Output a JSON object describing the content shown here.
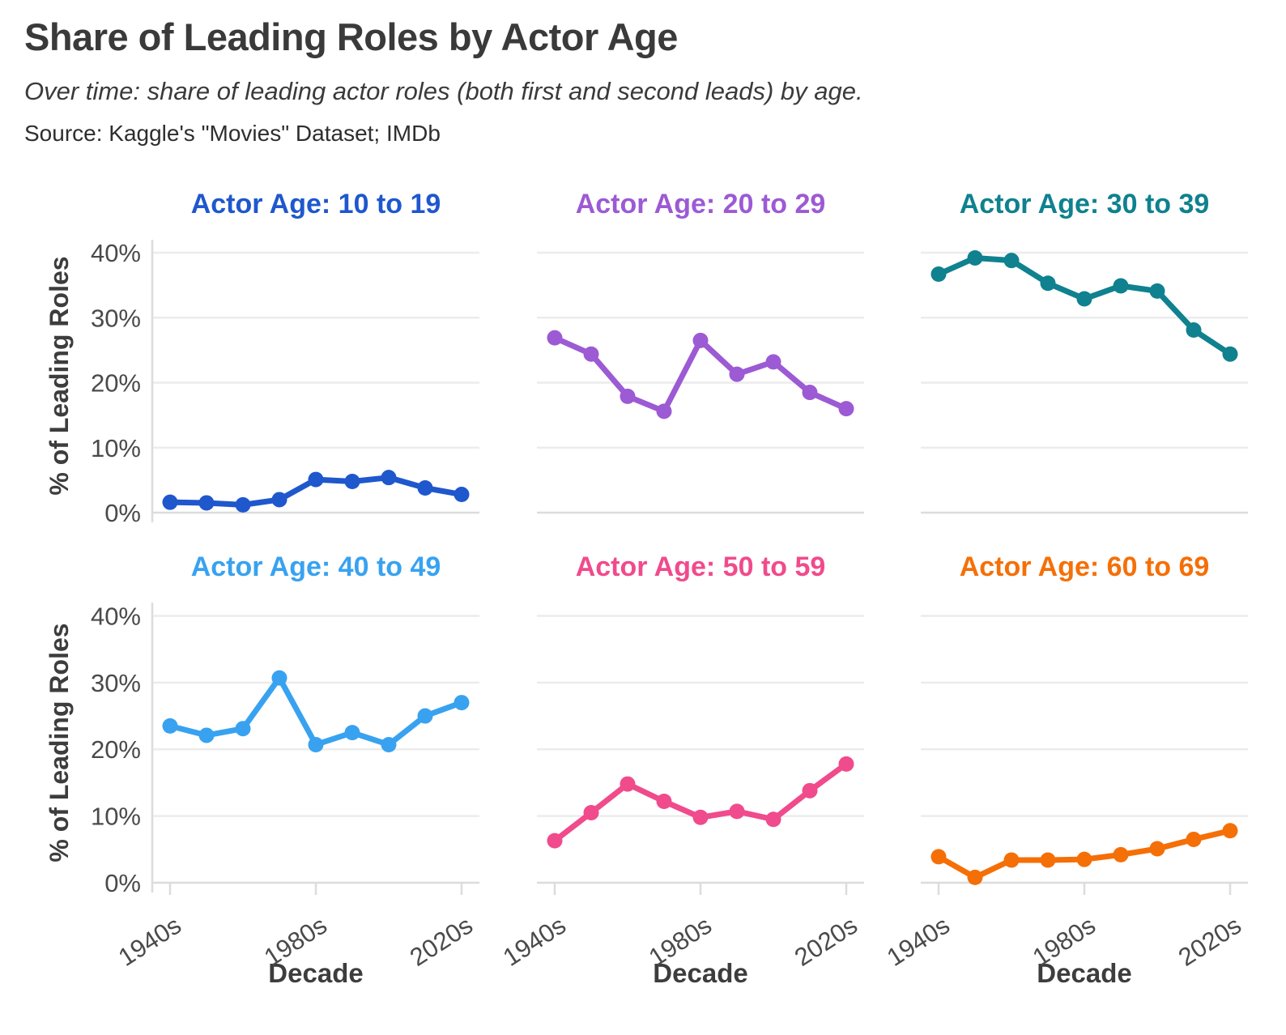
{
  "header": {
    "title": "Share of Leading Roles by Actor Age",
    "subtitle": "Over time: share of leading actor roles (both first and second leads) by age.",
    "source": "Source: Kaggle's \"Movies\" Dataset; IMDb"
  },
  "axes": {
    "y_label": "% of Leading Roles",
    "x_label": "Decade",
    "y_tick_labels": [
      "0%",
      "10%",
      "20%",
      "30%",
      "40%"
    ],
    "x_tick_labels_shown": [
      "1940s",
      "1980s",
      "2020s"
    ]
  },
  "colors": {
    "grid": "#ececec",
    "axis": "#dcdcdc",
    "tick_text": "#4a4a4a",
    "heading_text": "#3a3a3a"
  },
  "chart_data": {
    "type": "line",
    "categories": [
      "1940s",
      "1950s",
      "1960s",
      "1970s",
      "1980s",
      "1990s",
      "2000s",
      "2010s",
      "2020s"
    ],
    "x_ticks_shown": [
      "1940s",
      "1980s",
      "2020s"
    ],
    "xlabel": "Decade",
    "ylabel": "% of Leading Roles",
    "ylim": [
      0,
      42
    ],
    "y_ticks": [
      0,
      10,
      20,
      30,
      40
    ],
    "grid": true,
    "legend": "none (title per facet)",
    "layout": "2 rows x 3 columns small multiples",
    "panels": [
      {
        "title": "Actor Age: 10 to 19",
        "color": "#1f57cd",
        "values": [
          1.6,
          1.5,
          1.2,
          2.0,
          5.1,
          4.8,
          5.4,
          3.8,
          2.8
        ]
      },
      {
        "title": "Actor Age: 20 to 29",
        "color": "#9c5ad4",
        "values": [
          26.9,
          24.4,
          17.9,
          15.6,
          26.5,
          21.3,
          23.2,
          18.5,
          16.0
        ]
      },
      {
        "title": "Actor Age: 30 to 39",
        "color": "#0f818f",
        "values": [
          36.7,
          39.2,
          38.8,
          35.3,
          32.9,
          34.9,
          34.1,
          28.1,
          24.4
        ]
      },
      {
        "title": "Actor Age: 40 to 49",
        "color": "#38a2f0",
        "values": [
          23.5,
          22.1,
          23.1,
          30.7,
          20.7,
          22.5,
          20.7,
          25.0,
          27.0
        ]
      },
      {
        "title": "Actor Age: 50 to 59",
        "color": "#f04b8c",
        "values": [
          6.3,
          10.5,
          14.8,
          12.2,
          9.8,
          10.7,
          9.5,
          13.8,
          17.8
        ]
      },
      {
        "title": "Actor Age: 60 to 69",
        "color": "#f56f07",
        "values": [
          3.9,
          0.8,
          3.4,
          3.4,
          3.5,
          4.2,
          5.1,
          6.5,
          7.8
        ]
      }
    ]
  }
}
